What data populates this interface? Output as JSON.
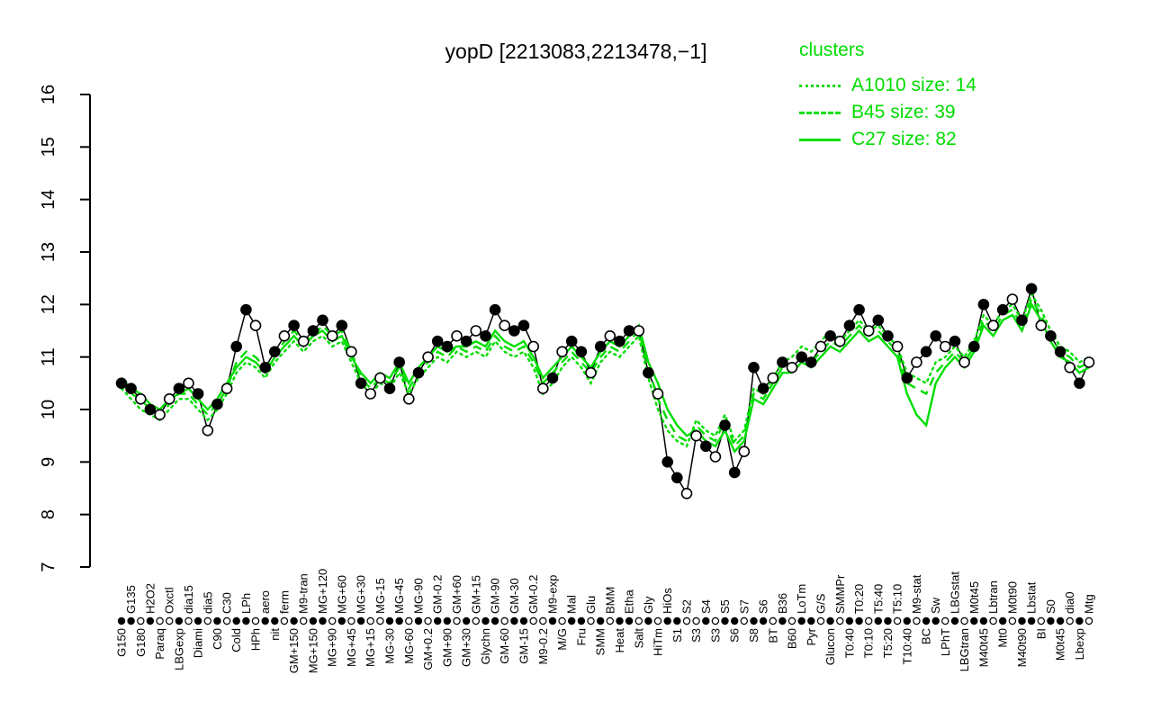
{
  "title": "yopD [2213083,2213478,−1]",
  "colors": {
    "cluster_green": "#00dd00",
    "series_black": "#000000",
    "background": "#ffffff"
  },
  "legend": {
    "title": "clusters",
    "items": [
      {
        "label": "A1010 size: 14",
        "style": "dotted"
      },
      {
        "label": "B45 size: 39",
        "style": "dashed"
      },
      {
        "label": "C27 size: 82",
        "style": "solid"
      }
    ]
  },
  "chart_data": {
    "type": "line",
    "title": "yopD [2213083,2213478,−1]",
    "ylim": [
      7,
      16
    ],
    "yticks": [
      7,
      8,
      9,
      10,
      11,
      12,
      13,
      14,
      15,
      16
    ],
    "grid": false,
    "legend_position": "top-right",
    "categories": [
      "G150",
      "G135",
      "G180",
      "H2O2",
      "Paraq",
      "Oxctl",
      "LBGexp",
      "dia15",
      "Diami",
      "dia5",
      "C90",
      "C30",
      "Cold",
      "LPh",
      "HPh",
      "aero",
      "nit",
      "ferm",
      "GM+150",
      "M9-tran",
      "MG+150",
      "MG+120",
      "MG+90",
      "MG+60",
      "MG+45",
      "MG+30",
      "MG+15",
      "MG-15",
      "MG-30",
      "MG-45",
      "MG-60",
      "MG-90",
      "GM+0.2",
      "GM-0.2",
      "GM+90",
      "GM+60",
      "GM+30",
      "GM+15",
      "Glychn",
      "GM-90",
      "GM-60",
      "GM-30",
      "GM-15",
      "GM-0.2",
      "M9-0.2",
      "M9-exp",
      "M/G",
      "Mal",
      "Fru",
      "Glu",
      "SMM",
      "BMM",
      "Heat",
      "Etha",
      "Salt",
      "Gly",
      "HiTm",
      "HiOs",
      "S1",
      "S2",
      "S3",
      "S4",
      "S3",
      "S5",
      "S6",
      "S7",
      "S8",
      "S6",
      "BT",
      "B36",
      "B60",
      "LoTm",
      "Pyr",
      "G/S",
      "Glucon",
      "SMMPr",
      "T0:40",
      "T0:20",
      "T0:10",
      "T5:40",
      "T5:20",
      "T5:10",
      "T10:40",
      "M9-stat",
      "BC",
      "Sw",
      "LPhT",
      "LBGstat",
      "LBGtran",
      "M0t45",
      "M40t45",
      "Lbtran",
      "Mt0",
      "M0t90",
      "M40t90",
      "Lbstat",
      "BI",
      "S0",
      "M0t45",
      "dia0",
      "Lbexp",
      "Mtg"
    ],
    "marker_fill": [
      1,
      1,
      0,
      1,
      0,
      0,
      1,
      0,
      1,
      0,
      1,
      0,
      1,
      1,
      0,
      1,
      1,
      0,
      1,
      0,
      1,
      1,
      0,
      1,
      0,
      1,
      0,
      0,
      1,
      1,
      0,
      1,
      0,
      1,
      1,
      0,
      1,
      0,
      1,
      1,
      0,
      1,
      1,
      0,
      0,
      1,
      0,
      1,
      1,
      0,
      1,
      0,
      1,
      1,
      0,
      1,
      0,
      1,
      1,
      0,
      0,
      1,
      0,
      1,
      1,
      0,
      1,
      1,
      0,
      1,
      0,
      1,
      1,
      0,
      1,
      0,
      1,
      1,
      0,
      1,
      1,
      0,
      1,
      0,
      1,
      1,
      0,
      1,
      0,
      1,
      1,
      0,
      1,
      0,
      1,
      1,
      0,
      1,
      1,
      0,
      1,
      0
    ],
    "series": [
      {
        "name": "yopD",
        "role": "gene-profile",
        "color": "#000000",
        "style": "solid",
        "width": 1.5,
        "marker": "circle",
        "values": [
          10.5,
          10.4,
          10.2,
          10.0,
          9.9,
          10.2,
          10.4,
          10.5,
          10.3,
          9.6,
          10.1,
          10.4,
          11.2,
          11.9,
          11.6,
          10.8,
          11.1,
          11.4,
          11.6,
          11.3,
          11.5,
          11.7,
          11.4,
          11.6,
          11.1,
          10.5,
          10.3,
          10.6,
          10.4,
          10.9,
          10.2,
          10.7,
          11.0,
          11.3,
          11.2,
          11.4,
          11.3,
          11.5,
          11.4,
          11.9,
          11.6,
          11.5,
          11.6,
          11.2,
          10.4,
          10.6,
          11.1,
          11.3,
          11.1,
          10.7,
          11.2,
          11.4,
          11.3,
          11.5,
          11.5,
          10.7,
          10.3,
          9.0,
          8.7,
          8.4,
          9.5,
          9.3,
          9.1,
          9.7,
          8.8,
          9.2,
          10.8,
          10.4,
          10.6,
          10.9,
          10.8,
          11.0,
          10.9,
          11.2,
          11.4,
          11.3,
          11.6,
          11.9,
          11.5,
          11.7,
          11.4,
          11.2,
          10.6,
          10.9,
          11.1,
          11.4,
          11.2,
          11.3,
          10.9,
          11.2,
          12.0,
          11.6,
          11.9,
          12.1,
          11.7,
          12.3,
          11.6,
          11.4,
          11.1,
          10.8,
          10.5,
          10.9
        ]
      },
      {
        "name": "A1010",
        "role": "cluster-mean",
        "size": 14,
        "color": "#00dd00",
        "style": "dotted",
        "width": 2.4,
        "values": [
          10.4,
          10.2,
          10.0,
          9.9,
          9.8,
          10.0,
          10.2,
          10.2,
          10.0,
          9.8,
          10.0,
          10.3,
          10.7,
          10.9,
          10.8,
          10.6,
          10.9,
          11.1,
          11.3,
          11.1,
          11.3,
          11.4,
          11.2,
          11.3,
          10.9,
          10.5,
          10.3,
          10.5,
          10.4,
          10.7,
          10.3,
          10.6,
          10.8,
          11.0,
          10.9,
          11.1,
          11.0,
          11.1,
          11.0,
          11.3,
          11.1,
          11.0,
          11.1,
          10.8,
          10.3,
          10.5,
          10.8,
          11.0,
          10.8,
          10.5,
          10.9,
          11.1,
          11.0,
          11.2,
          11.4,
          10.6,
          10.0,
          9.6,
          9.4,
          9.3,
          9.8,
          9.6,
          9.5,
          9.9,
          9.4,
          9.6,
          10.4,
          10.3,
          10.6,
          10.9,
          11.0,
          11.2,
          11.1,
          11.3,
          11.5,
          11.3,
          11.5,
          11.7,
          11.5,
          11.6,
          11.4,
          11.2,
          10.7,
          10.6,
          10.5,
          10.9,
          11.0,
          11.2,
          11.0,
          11.3,
          11.8,
          11.6,
          11.9,
          12.0,
          11.7,
          12.2,
          11.9,
          11.5,
          11.2,
          11.1,
          10.9,
          11.0
        ]
      },
      {
        "name": "B45",
        "role": "cluster-mean",
        "size": 39,
        "color": "#00dd00",
        "style": "dashed",
        "width": 2.4,
        "values": [
          10.5,
          10.3,
          10.2,
          10.0,
          9.9,
          10.1,
          10.3,
          10.3,
          10.1,
          9.9,
          10.1,
          10.4,
          10.9,
          11.1,
          11.0,
          10.8,
          11.0,
          11.3,
          11.5,
          11.3,
          11.4,
          11.6,
          11.4,
          11.5,
          11.1,
          10.6,
          10.4,
          10.6,
          10.5,
          10.8,
          10.4,
          10.7,
          10.9,
          11.1,
          11.0,
          11.2,
          11.1,
          11.2,
          11.1,
          11.4,
          11.2,
          11.1,
          11.2,
          10.9,
          10.5,
          10.7,
          10.9,
          11.1,
          10.9,
          10.7,
          11.0,
          11.2,
          11.1,
          11.3,
          11.5,
          10.8,
          10.2,
          9.8,
          9.5,
          9.4,
          9.7,
          9.5,
          9.4,
          9.8,
          9.3,
          9.5,
          10.3,
          10.2,
          10.5,
          10.8,
          10.8,
          11.0,
          10.9,
          11.1,
          11.3,
          11.2,
          11.4,
          11.6,
          11.4,
          11.5,
          11.3,
          11.1,
          10.5,
          10.4,
          10.3,
          10.7,
          10.9,
          11.1,
          10.9,
          11.2,
          11.7,
          11.5,
          11.8,
          11.9,
          11.6,
          12.1,
          11.8,
          11.4,
          11.1,
          11.0,
          10.8,
          10.9
        ]
      },
      {
        "name": "C27",
        "role": "cluster-mean",
        "size": 82,
        "color": "#00dd00",
        "style": "solid",
        "width": 2.4,
        "values": [
          10.6,
          10.4,
          10.3,
          10.1,
          10.0,
          10.2,
          10.3,
          10.4,
          10.2,
          10.0,
          10.2,
          10.5,
          10.8,
          11.0,
          10.9,
          10.7,
          11.0,
          11.2,
          11.4,
          11.2,
          11.4,
          11.5,
          11.3,
          11.4,
          11.0,
          10.7,
          10.5,
          10.7,
          10.6,
          10.9,
          10.5,
          10.8,
          11.0,
          11.2,
          11.1,
          11.2,
          11.2,
          11.3,
          11.2,
          11.5,
          11.3,
          11.2,
          11.3,
          11.0,
          10.6,
          10.8,
          11.0,
          11.2,
          11.0,
          10.8,
          11.1,
          11.3,
          11.2,
          11.4,
          11.6,
          10.9,
          10.5,
          10.0,
          9.7,
          9.5,
          9.6,
          9.4,
          9.3,
          9.6,
          9.2,
          9.4,
          10.2,
          10.1,
          10.4,
          10.7,
          10.7,
          10.9,
          10.8,
          11.0,
          11.2,
          11.1,
          11.3,
          11.5,
          11.3,
          11.4,
          11.2,
          11.0,
          10.3,
          9.9,
          9.7,
          10.5,
          10.8,
          11.0,
          10.8,
          11.1,
          11.6,
          11.4,
          11.7,
          11.8,
          11.5,
          12.0,
          11.7,
          11.3,
          11.0,
          10.9,
          10.7,
          10.8
        ]
      }
    ]
  }
}
